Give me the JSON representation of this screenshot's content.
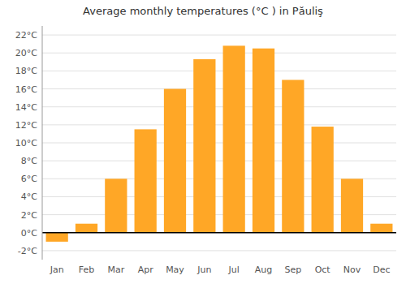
{
  "chart_data": {
    "type": "bar",
    "title": "Average monthly temperatures (°C ) in Păuliş",
    "categories": [
      "Jan",
      "Feb",
      "Mar",
      "Apr",
      "May",
      "Jun",
      "Jul",
      "Aug",
      "Sep",
      "Oct",
      "Nov",
      "Dec"
    ],
    "values": [
      -1.0,
      1.0,
      6.0,
      11.5,
      16.0,
      19.3,
      20.8,
      20.5,
      17.0,
      11.8,
      6.0,
      1.0
    ],
    "color": "#FFA726",
    "ylim": [
      -3,
      23
    ],
    "yticks": [
      {
        "value": -2,
        "label": "-2°C"
      },
      {
        "value": 0,
        "label": "0°C"
      },
      {
        "value": 2,
        "label": "2°C"
      },
      {
        "value": 4,
        "label": "4°C"
      },
      {
        "value": 6,
        "label": "6°C"
      },
      {
        "value": 8,
        "label": "8°C"
      },
      {
        "value": 10,
        "label": "10°C"
      },
      {
        "value": 12,
        "label": "12°C"
      },
      {
        "value": 14,
        "label": "14°C"
      },
      {
        "value": 16,
        "label": "16°C"
      },
      {
        "value": 18,
        "label": "18°C"
      },
      {
        "value": 20,
        "label": "20°C"
      },
      {
        "value": 22,
        "label": "22°C"
      }
    ],
    "grid": true
  }
}
